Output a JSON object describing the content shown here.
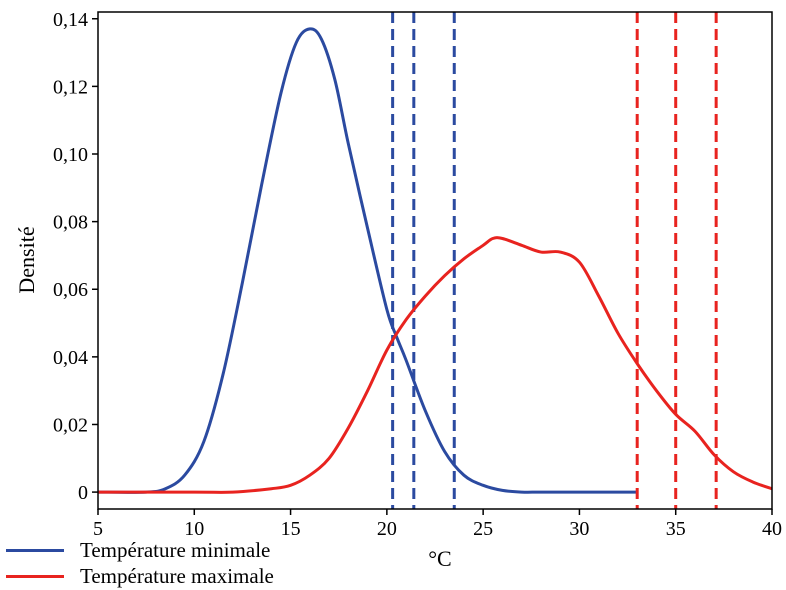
{
  "chart_data": {
    "type": "line",
    "xlabel": "°C",
    "ylabel": "Densité",
    "xlim": [
      5,
      40
    ],
    "ylim": [
      -0.005,
      0.142
    ],
    "x_ticks": [
      5,
      10,
      15,
      20,
      25,
      30,
      35,
      40
    ],
    "x_tick_labels": [
      "5",
      "10",
      "15",
      "20",
      "25",
      "30",
      "35",
      "40"
    ],
    "y_ticks": [
      0,
      0.02,
      0.04,
      0.06,
      0.08,
      0.1,
      0.12,
      0.14
    ],
    "y_tick_labels": [
      "0",
      "0,02",
      "0,04",
      "0,06",
      "0,08",
      "0,10",
      "0,12",
      "0,14"
    ],
    "series": [
      {
        "name": "Température minimale",
        "color": "#2b4aa0",
        "x": [
          5,
          7.5,
          8.5,
          9.5,
          10.5,
          11.5,
          12.5,
          13.5,
          14.5,
          15.3,
          16,
          16.6,
          17.3,
          18,
          19,
          20,
          20.5,
          21,
          22,
          23,
          24,
          25,
          26,
          27,
          28,
          30,
          33
        ],
        "y": [
          0,
          0,
          0.001,
          0.005,
          0.015,
          0.035,
          0.062,
          0.091,
          0.118,
          0.133,
          0.137,
          0.134,
          0.122,
          0.103,
          0.078,
          0.054,
          0.046,
          0.039,
          0.024,
          0.012,
          0.005,
          0.002,
          0.0005,
          0,
          0,
          0,
          0
        ],
        "reference_lines": [
          20.3,
          21.4,
          23.5
        ]
      },
      {
        "name": "Température maximale",
        "color": "#e8231f",
        "x": [
          5,
          10,
          12,
          14,
          15,
          16,
          17,
          18,
          19,
          20,
          21,
          22,
          23,
          24,
          25,
          25.5,
          26,
          27,
          28,
          29,
          30,
          31,
          32,
          33,
          34,
          35,
          36,
          37,
          38,
          39,
          40
        ],
        "y": [
          0,
          0,
          0,
          0.001,
          0.002,
          0.005,
          0.01,
          0.019,
          0.03,
          0.042,
          0.051,
          0.058,
          0.064,
          0.069,
          0.073,
          0.075,
          0.075,
          0.073,
          0.071,
          0.071,
          0.068,
          0.058,
          0.047,
          0.038,
          0.03,
          0.023,
          0.018,
          0.011,
          0.006,
          0.003,
          0.001
        ],
        "reference_lines": [
          33.0,
          35.0,
          37.1
        ]
      }
    ],
    "grid": false,
    "legend_position": "bottom-left"
  },
  "legend": {
    "min_label": "Température minimale",
    "max_label": "Température maximale",
    "min_color": "#2b4aa0",
    "max_color": "#e8231f"
  }
}
